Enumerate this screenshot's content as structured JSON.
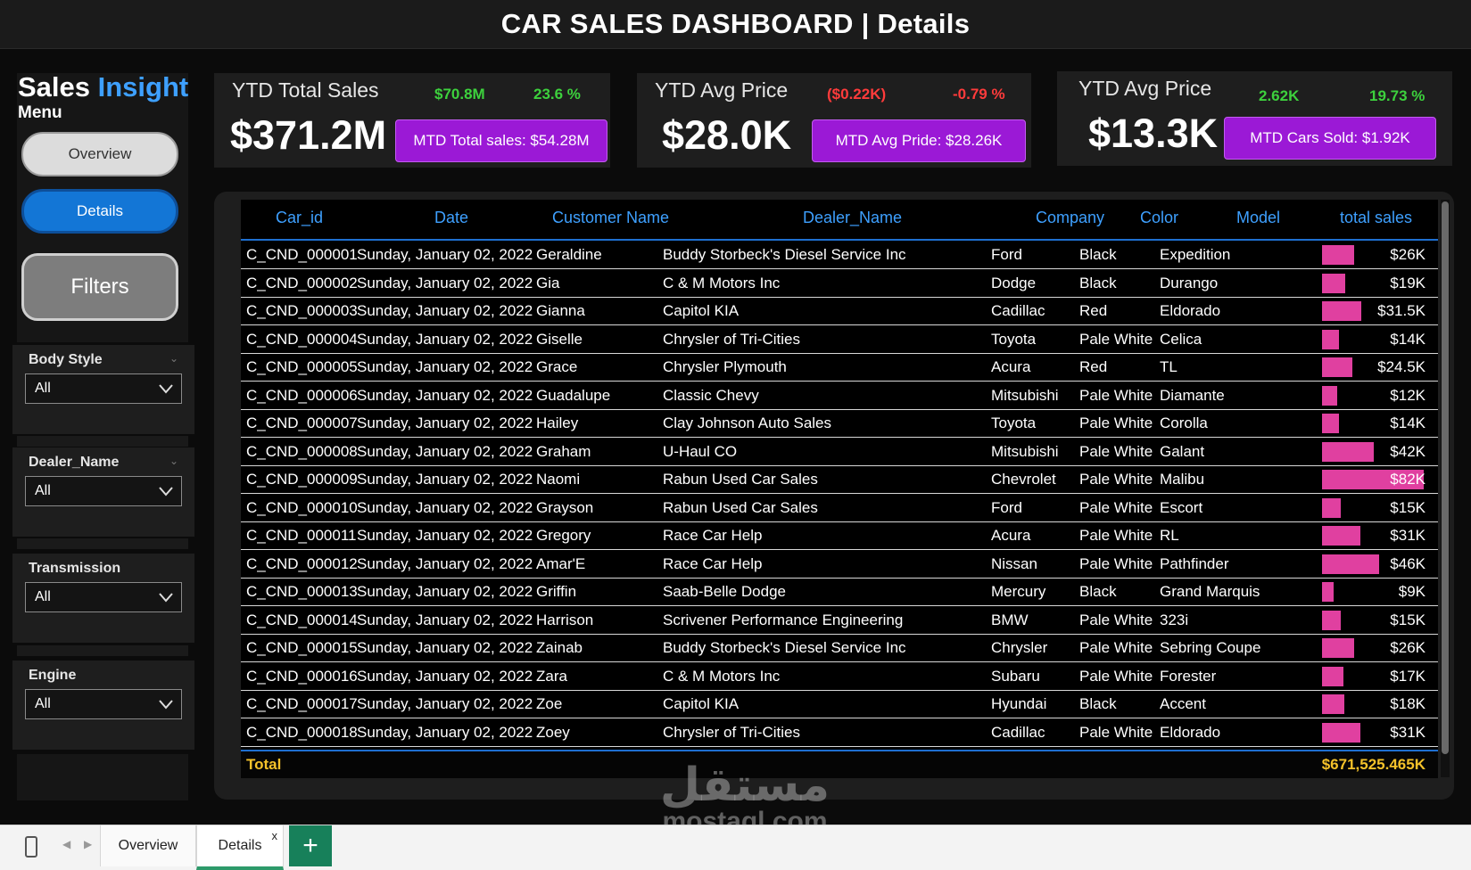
{
  "header": {
    "title": "CAR SALES DASHBOARD |  Details"
  },
  "sidebar": {
    "brand_part1": "Sales ",
    "brand_part2": "Insight",
    "menu_label": "Menu",
    "overview_label": "Overview",
    "details_label": "Details",
    "filters_label": "Filters",
    "filters": [
      {
        "label": "Body Style",
        "value": "All"
      },
      {
        "label": "Dealer_Name",
        "value": "All"
      },
      {
        "label": "Transmission",
        "value": "All"
      },
      {
        "label": "Engine",
        "value": "All"
      }
    ]
  },
  "kpis": [
    {
      "title": "YTD Total Sales",
      "value": "$371.2M",
      "stat1": "$70.8M",
      "stat2": "23.6 %",
      "button": "MTD Total sales: $54.28M",
      "stat_color": "green"
    },
    {
      "title": "YTD Avg Price",
      "value": "$28.0K",
      "stat1": "($0.22K)",
      "stat2": "-0.79 %",
      "button": "MTD Avg Pride: $28.26K",
      "stat_color": "red"
    },
    {
      "title": "YTD Avg Price",
      "value": "$13.3K",
      "stat1": "2.62K",
      "stat2": "19.73 %",
      "button": "MTD Cars Sold: $1.92K",
      "stat_color": "green"
    }
  ],
  "table": {
    "columns": [
      "Car_id",
      "Date",
      "Customer Name",
      "Dealer_Name",
      "Company",
      "Color",
      "Model",
      "total sales"
    ],
    "bar_color": "#e040a0",
    "rows": [
      {
        "car_id": "C_CND_000001",
        "date": "Sunday, January 02, 2022",
        "customer": "Geraldine",
        "dealer": "Buddy Storbeck's Diesel Service Inc",
        "company": "Ford",
        "color": "Black",
        "model": "Expedition",
        "sales_label": "$26K",
        "sales_value": 26000
      },
      {
        "car_id": "C_CND_000002",
        "date": "Sunday, January 02, 2022",
        "customer": "Gia",
        "dealer": "C & M Motors Inc",
        "company": "Dodge",
        "color": "Black",
        "model": "Durango",
        "sales_label": "$19K",
        "sales_value": 19000
      },
      {
        "car_id": "C_CND_000003",
        "date": "Sunday, January 02, 2022",
        "customer": "Gianna",
        "dealer": "Capitol KIA",
        "company": "Cadillac",
        "color": "Red",
        "model": "Eldorado",
        "sales_label": "$31.5K",
        "sales_value": 31500
      },
      {
        "car_id": "C_CND_000004",
        "date": "Sunday, January 02, 2022",
        "customer": "Giselle",
        "dealer": "Chrysler of Tri-Cities",
        "company": "Toyota",
        "color": "Pale White",
        "model": "Celica",
        "sales_label": "$14K",
        "sales_value": 14000
      },
      {
        "car_id": "C_CND_000005",
        "date": "Sunday, January 02, 2022",
        "customer": "Grace",
        "dealer": "Chrysler Plymouth",
        "company": "Acura",
        "color": "Red",
        "model": "TL",
        "sales_label": "$24.5K",
        "sales_value": 24500
      },
      {
        "car_id": "C_CND_000006",
        "date": "Sunday, January 02, 2022",
        "customer": "Guadalupe",
        "dealer": "Classic Chevy",
        "company": "Mitsubishi",
        "color": "Pale White",
        "model": "Diamante",
        "sales_label": "$12K",
        "sales_value": 12000
      },
      {
        "car_id": "C_CND_000007",
        "date": "Sunday, January 02, 2022",
        "customer": "Hailey",
        "dealer": "Clay Johnson Auto Sales",
        "company": "Toyota",
        "color": "Pale White",
        "model": "Corolla",
        "sales_label": "$14K",
        "sales_value": 14000
      },
      {
        "car_id": "C_CND_000008",
        "date": "Sunday, January 02, 2022",
        "customer": "Graham",
        "dealer": "U-Haul CO",
        "company": "Mitsubishi",
        "color": "Pale White",
        "model": "Galant",
        "sales_label": "$42K",
        "sales_value": 42000
      },
      {
        "car_id": "C_CND_000009",
        "date": "Sunday, January 02, 2022",
        "customer": "Naomi",
        "dealer": "Rabun Used Car Sales",
        "company": "Chevrolet",
        "color": "Pale White",
        "model": "Malibu",
        "sales_label": "$82K",
        "sales_value": 82000
      },
      {
        "car_id": "C_CND_000010",
        "date": "Sunday, January 02, 2022",
        "customer": "Grayson",
        "dealer": "Rabun Used Car Sales",
        "company": "Ford",
        "color": "Pale White",
        "model": "Escort",
        "sales_label": "$15K",
        "sales_value": 15000
      },
      {
        "car_id": "C_CND_000011",
        "date": "Sunday, January 02, 2022",
        "customer": "Gregory",
        "dealer": "Race Car Help",
        "company": "Acura",
        "color": "Pale White",
        "model": "RL",
        "sales_label": "$31K",
        "sales_value": 31000
      },
      {
        "car_id": "C_CND_000012",
        "date": "Sunday, January 02, 2022",
        "customer": "Amar'E",
        "dealer": "Race Car Help",
        "company": "Nissan",
        "color": "Pale White",
        "model": "Pathfinder",
        "sales_label": "$46K",
        "sales_value": 46000
      },
      {
        "car_id": "C_CND_000013",
        "date": "Sunday, January 02, 2022",
        "customer": "Griffin",
        "dealer": "Saab-Belle Dodge",
        "company": "Mercury",
        "color": "Black",
        "model": "Grand Marquis",
        "sales_label": "$9K",
        "sales_value": 9000
      },
      {
        "car_id": "C_CND_000014",
        "date": "Sunday, January 02, 2022",
        "customer": "Harrison",
        "dealer": "Scrivener Performance Engineering",
        "company": "BMW",
        "color": "Pale White",
        "model": "323i",
        "sales_label": "$15K",
        "sales_value": 15000
      },
      {
        "car_id": "C_CND_000015",
        "date": "Sunday, January 02, 2022",
        "customer": "Zainab",
        "dealer": "Buddy Storbeck's Diesel Service Inc",
        "company": "Chrysler",
        "color": "Pale White",
        "model": "Sebring Coupe",
        "sales_label": "$26K",
        "sales_value": 26000
      },
      {
        "car_id": "C_CND_000016",
        "date": "Sunday, January 02, 2022",
        "customer": "Zara",
        "dealer": "C & M Motors Inc",
        "company": "Subaru",
        "color": "Pale White",
        "model": "Forester",
        "sales_label": "$17K",
        "sales_value": 17000
      },
      {
        "car_id": "C_CND_000017",
        "date": "Sunday, January 02, 2022",
        "customer": "Zoe",
        "dealer": "Capitol KIA",
        "company": "Hyundai",
        "color": "Black",
        "model": "Accent",
        "sales_label": "$18K",
        "sales_value": 18000
      },
      {
        "car_id": "C_CND_000018",
        "date": "Sunday, January 02, 2022",
        "customer": "Zoey",
        "dealer": "Chrysler of Tri-Cities",
        "company": "Cadillac",
        "color": "Pale White",
        "model": "Eldorado",
        "sales_label": "$31K",
        "sales_value": 31000
      }
    ],
    "total_label": "Total",
    "total_value": "$671,525.465K"
  },
  "watermark": {
    "arabic": "مستقل",
    "latin": "mostaql.com"
  },
  "tabs": [
    {
      "label": "Overview",
      "active": false
    },
    {
      "label": "Details",
      "active": true
    }
  ],
  "tab_close": "x",
  "tab_add": "+",
  "colors": {
    "accent_blue": "#3ea0ff",
    "kpi_button": "#9b19d6",
    "positive": "#3dd13d",
    "negative": "#ff3b3b",
    "total": "#f5c22a",
    "tab_active": "#17805a"
  }
}
